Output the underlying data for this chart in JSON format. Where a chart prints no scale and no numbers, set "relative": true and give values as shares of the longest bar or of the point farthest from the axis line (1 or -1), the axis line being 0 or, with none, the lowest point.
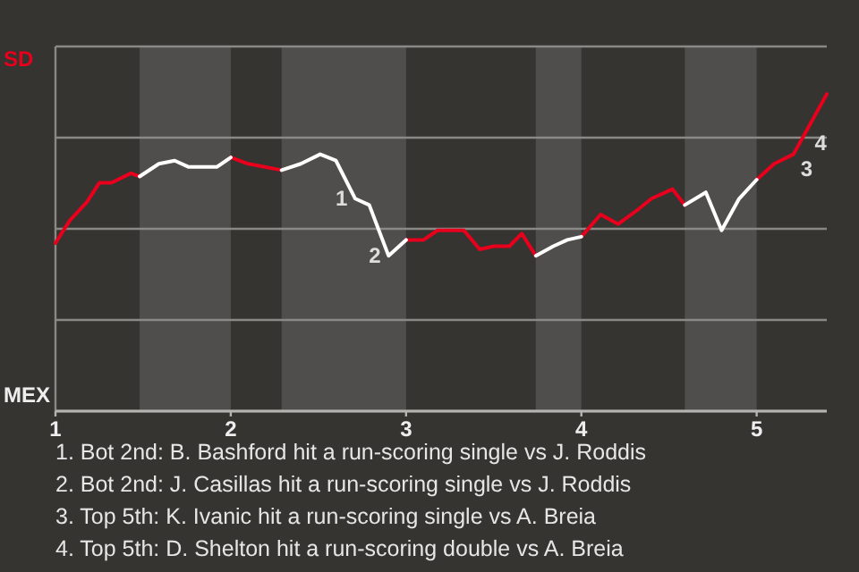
{
  "chart_data": {
    "type": "line",
    "relative": true,
    "x": [
      1.0,
      1.08,
      1.18,
      1.25,
      1.32,
      1.43,
      1.48,
      1.59,
      1.68,
      1.76,
      1.92,
      2.0,
      2.1,
      2.29,
      2.4,
      2.51,
      2.6,
      2.71,
      2.79,
      2.9,
      3.0,
      3.1,
      3.18,
      3.33,
      3.42,
      3.5,
      3.59,
      3.66,
      3.74,
      3.84,
      3.92,
      4.0,
      4.11,
      4.21,
      4.31,
      4.4,
      4.52,
      4.59,
      4.71,
      4.8,
      4.9,
      5.0,
      5.1,
      5.21,
      5.29,
      5.4
    ],
    "series": [
      {
        "color": "#e8001c",
        "values": [
          0.53,
          0.6,
          0.66,
          0.72,
          0.72,
          0.75,
          0.74,
          null,
          null,
          null,
          null,
          0.8,
          0.78,
          0.76,
          null,
          null,
          null,
          null,
          null,
          null,
          0.54,
          0.54,
          0.57,
          0.57,
          0.51,
          0.52,
          0.52,
          0.56,
          0.49,
          null,
          null,
          0.55,
          0.62,
          0.59,
          0.63,
          0.67,
          0.7,
          0.65,
          null,
          null,
          null,
          0.73,
          0.78,
          0.81,
          0.89,
          1
        ]
      },
      {
        "color": "#ffffff",
        "values": [
          null,
          null,
          null,
          null,
          null,
          null,
          0.74,
          0.78,
          0.79,
          0.77,
          0.77,
          0.8,
          null,
          0.76,
          0.78,
          0.81,
          0.79,
          0.67,
          0.65,
          0.49,
          0.54,
          null,
          null,
          null,
          null,
          null,
          null,
          null,
          0.49,
          0.52,
          0.54,
          0.55,
          null,
          null,
          null,
          null,
          null,
          0.65,
          0.69,
          0.57,
          0.67,
          0.73,
          null,
          null,
          null,
          null
        ]
      }
    ],
    "xlim": [
      1,
      5.4
    ],
    "xticks": [
      1,
      2,
      3,
      4,
      5
    ],
    "grid": "y",
    "marker": "none",
    "line_style": "solid",
    "bands": [
      {
        "axis": "x",
        "from": 1.48,
        "to": 2,
        "color": "#4f4e4c"
      },
      {
        "axis": "x",
        "from": 2.29,
        "to": 3,
        "color": "#4f4e4c"
      },
      {
        "axis": "x",
        "from": 3.74,
        "to": 4,
        "color": "#4f4e4c"
      },
      {
        "axis": "x",
        "from": 4.59,
        "to": 5,
        "color": "#4f4e4c"
      }
    ],
    "annotations": [
      "SD",
      "MEX",
      {
        "text": "1",
        "x": 2.71,
        "y": 0.67
      },
      {
        "text": "2",
        "x": 2.9,
        "y": 0.49
      },
      {
        "text": "3",
        "x": 5.21,
        "y": 0.81
      },
      {
        "text": "4",
        "x": 5.29,
        "y": 0.89
      },
      "1. Bot 2nd: B. Bashford hit a run-scoring single vs J. Roddis",
      "2. Bot 2nd: J. Casillas hit a run-scoring single vs J. Roddis",
      "3. Top 5th: K. Ivanic hit a run-scoring single vs A. Breia",
      "4. Top 5th: D. Shelton hit a run-scoring double vs A. Breia"
    ]
  }
}
